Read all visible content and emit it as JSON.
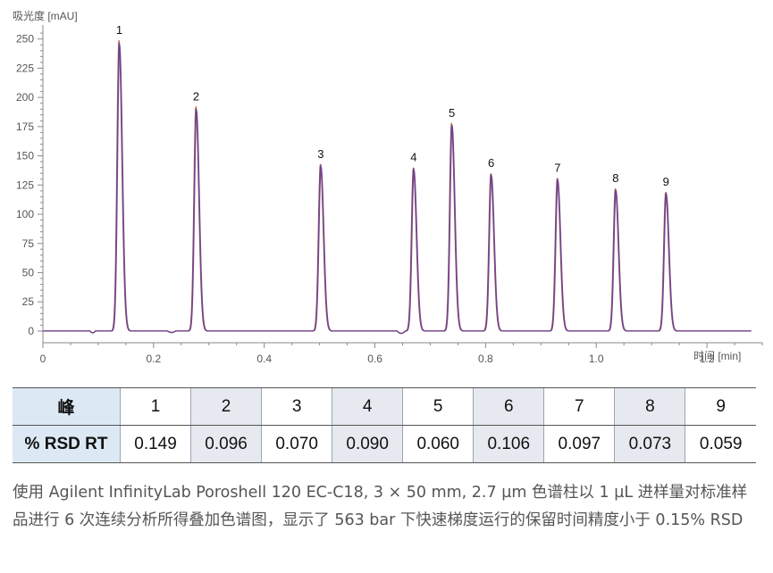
{
  "chart_data": {
    "type": "line",
    "ylabel": "吸光度 [mAU]",
    "xlabel": "时间 [min]",
    "xlim": [
      0,
      1.3
    ],
    "ylim": [
      -10,
      262
    ],
    "xticks": [
      "0",
      "0.2",
      "0.4",
      "0.6",
      "0.8",
      "1.0",
      "1.2"
    ],
    "yticks": [
      "0",
      "25",
      "50",
      "75",
      "100",
      "125",
      "150",
      "175",
      "200",
      "225",
      "250"
    ],
    "peaks": [
      {
        "label": "1",
        "rt": 0.138,
        "height": 249
      },
      {
        "label": "2",
        "rt": 0.277,
        "height": 192
      },
      {
        "label": "3",
        "rt": 0.502,
        "height": 143
      },
      {
        "label": "4",
        "rt": 0.67,
        "height": 140
      },
      {
        "label": "5",
        "rt": 0.739,
        "height": 178
      },
      {
        "label": "6",
        "rt": 0.81,
        "height": 135
      },
      {
        "label": "7",
        "rt": 0.93,
        "height": 131
      },
      {
        "label": "8",
        "rt": 1.035,
        "height": 122
      },
      {
        "label": "9",
        "rt": 1.126,
        "height": 119
      }
    ],
    "series_colors": [
      "#c0392b",
      "#2c5aa0",
      "#7a3b8a"
    ],
    "run_end": 1.28
  },
  "table": {
    "header_label": "峰",
    "row_label": "% RSD RT",
    "peaks": [
      "1",
      "2",
      "3",
      "4",
      "5",
      "6",
      "7",
      "8",
      "9"
    ],
    "rsd": [
      "0.149",
      "0.096",
      "0.070",
      "0.090",
      "0.060",
      "0.106",
      "0.097",
      "0.073",
      "0.059"
    ]
  },
  "caption": "使用 Agilent InfinityLab Poroshell 120 EC-C18, 3 × 50 mm, 2.7 µm 色谱柱以 1 µL 进样量对标准样品进行 6 次连续分析所得叠加色谱图，显示了 563 bar 下快速梯度运行的保留时间精度小于 0.15% RSD"
}
